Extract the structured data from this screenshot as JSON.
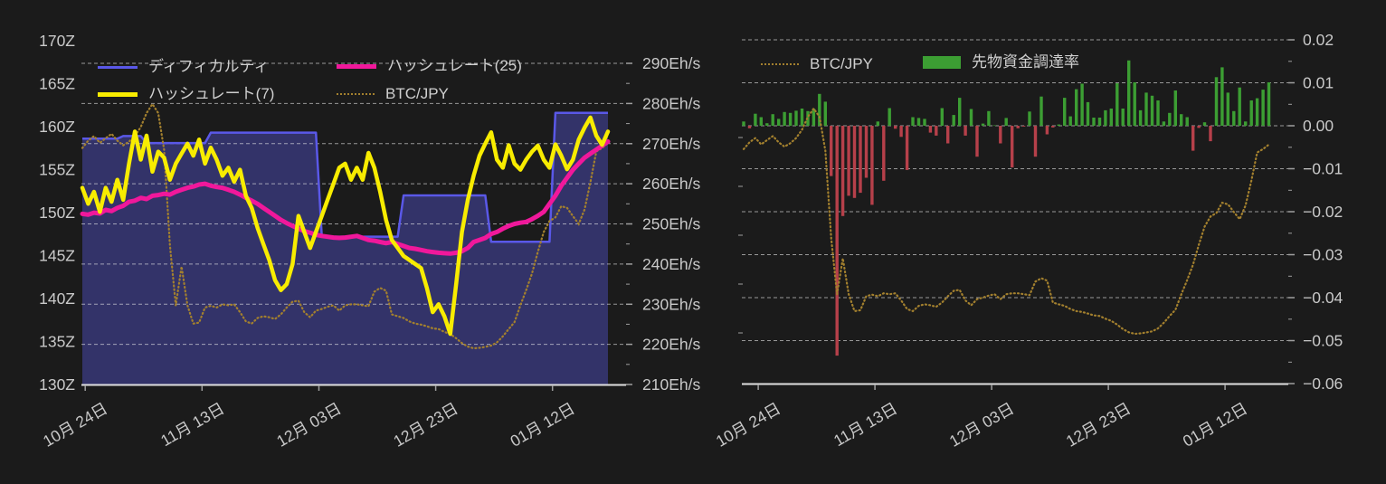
{
  "page": {
    "background": "#1b1b1b"
  },
  "colors": {
    "text": "#c9c9c9",
    "grid": "#ececec",
    "axis_line": "#e0e0e0",
    "tick_mark": "#9f9f9f",
    "difficulty_line": "#5a58e8",
    "difficulty_fill": "rgba(93,91,235,0.38)",
    "hashrate7": "#f8ec00",
    "hashrate25": "#f0189b",
    "btc_jpy": "#a3802e",
    "funding_positive": "#3c9e33",
    "funding_negative": "#b6404a"
  },
  "chart_data": [
    {
      "type": "line",
      "name": "difficulty-hashrate-chart",
      "title": "",
      "grid": true,
      "legend_position": "top-left-inside",
      "x_axis": {
        "tick_labels": [
          "10月 24日",
          "11月 13日",
          "12月 03日",
          "12月 23日",
          "01月 12日"
        ],
        "tick_day_index": [
          0.5,
          20.5,
          40.5,
          60.5,
          80.5
        ]
      },
      "y_left": {
        "unit": "Z",
        "min": 130,
        "max": 170,
        "tick_values": [
          170,
          165,
          160,
          155,
          150,
          145,
          140,
          135,
          130
        ],
        "tick_labels": [
          "170Z",
          "165Z",
          "160Z",
          "155Z",
          "150Z",
          "145Z",
          "140Z",
          "135Z",
          "130Z"
        ]
      },
      "y_right": {
        "unit": "Eh/s",
        "min": 210,
        "max": 290,
        "tick_values": [
          290,
          280,
          270,
          260,
          250,
          240,
          230,
          220,
          210
        ],
        "tick_labels": [
          "290Eh/s",
          "280Eh/s",
          "270Eh/s",
          "260Eh/s",
          "250Eh/s",
          "240Eh/s",
          "230Eh/s",
          "220Eh/s",
          "210Eh/s"
        ]
      },
      "series": [
        {
          "name": "ディフィカルティ",
          "axis": "left",
          "style": "step-area",
          "values": [
            158.6,
            158.6,
            158.6,
            158.6,
            158.6,
            158.6,
            158.6,
            158.9,
            158.9,
            158.9,
            158.9,
            158.1,
            158.1,
            158.1,
            158.1,
            158.1,
            158.1,
            158.1,
            158.1,
            158.1,
            158.1,
            158.1,
            159.3,
            159.3,
            159.3,
            159.3,
            159.3,
            159.3,
            159.3,
            159.3,
            159.3,
            159.3,
            159.3,
            159.3,
            159.3,
            159.3,
            159.3,
            159.3,
            159.3,
            159.3,
            159.3,
            147.2,
            147.2,
            147.2,
            147.2,
            147.2,
            147.2,
            147.2,
            147.2,
            147.2,
            147.2,
            147.2,
            147.2,
            147.2,
            147.2,
            152.0,
            152.0,
            152.0,
            152.0,
            152.0,
            152.0,
            152.0,
            152.0,
            152.0,
            152.0,
            152.0,
            152.0,
            152.0,
            152.0,
            152.0,
            146.6,
            146.6,
            146.6,
            146.6,
            146.6,
            146.6,
            146.6,
            146.6,
            146.6,
            146.6,
            146.6,
            161.6,
            161.6,
            161.6,
            161.6,
            161.6,
            161.6,
            161.6,
            161.6,
            161.6,
            161.6
          ]
        },
        {
          "name": "ハッシュレート(25)",
          "axis": "right",
          "style": "line",
          "values": [
            252.5,
            252.3,
            252.8,
            252.6,
            253.5,
            253.2,
            254,
            254.5,
            255.5,
            255.8,
            256.5,
            256.2,
            257,
            257.2,
            257.5,
            257.3,
            258,
            258.5,
            259,
            259.3,
            259.8,
            260,
            259.5,
            259.2,
            259,
            258.5,
            258,
            257.3,
            256.5,
            255.8,
            255,
            254,
            253,
            252,
            251,
            250.2,
            249.5,
            248.8,
            248.2,
            247.8,
            247.3,
            247,
            246.8,
            246.6,
            246.5,
            246.6,
            246.8,
            247,
            246.5,
            246,
            245.8,
            245.5,
            245.2,
            245.5,
            245,
            244.5,
            244,
            243.8,
            243.5,
            243.2,
            243,
            242.8,
            242.7,
            242.6,
            242.8,
            243.2,
            244,
            245.5,
            246,
            246.5,
            247.5,
            248,
            248.8,
            249.5,
            250,
            250.3,
            250.5,
            251.2,
            252,
            253,
            255,
            257,
            259.5,
            261.5,
            263.5,
            265,
            266.5,
            267.5,
            268.5,
            269.5,
            270.5
          ]
        },
        {
          "name": "ハッシュレート(7)",
          "axis": "right",
          "style": "line",
          "values": [
            259,
            255,
            258,
            253,
            259,
            255.5,
            261,
            256,
            265,
            273,
            266,
            272,
            263,
            268,
            266.5,
            261,
            265,
            267.5,
            270,
            267,
            271,
            265,
            269,
            266,
            262,
            264,
            260.5,
            263.5,
            257,
            254,
            249,
            245,
            241,
            236,
            233.5,
            235,
            240,
            252,
            248,
            244,
            248,
            252,
            256,
            260,
            264,
            265,
            261,
            264,
            261,
            267.7,
            264,
            258,
            251,
            246,
            244,
            242,
            241,
            240,
            239,
            234,
            228,
            230,
            227,
            222.6,
            235,
            248,
            256,
            262,
            267,
            270,
            272.8,
            266,
            264,
            269.6,
            265,
            263.5,
            266,
            268,
            269.5,
            266,
            264,
            269.8,
            267,
            263.6,
            266,
            271,
            274,
            276.5,
            272,
            269.7,
            273
          ]
        },
        {
          "name": "BTC/JPY",
          "axis": "hidden (normalized 0-100, no visible scale)",
          "style": "dotted",
          "values": [
            82,
            85,
            86.9,
            84.1,
            86,
            87.8,
            85,
            83.1,
            84.6,
            86.9,
            90.6,
            96.3,
            100,
            96.3,
            81.3,
            42.3,
            17.6,
            33.5,
            17.6,
            10.1,
            10.5,
            16.7,
            17.4,
            16.7,
            18,
            17.6,
            18,
            14.8,
            11,
            10.1,
            12.4,
            13.1,
            12.7,
            12,
            13.9,
            16.7,
            19.1,
            19.5,
            14.8,
            12.7,
            15.4,
            16.1,
            17,
            17.6,
            15.4,
            17.6,
            18,
            18,
            17.6,
            17.2,
            23.2,
            24.7,
            23.6,
            13.9,
            13.1,
            12.4,
            11,
            10.1,
            9.7,
            9,
            8.2,
            7.9,
            6.7,
            5.8,
            4.1,
            2.1,
            0.7,
            0,
            0.2,
            0.6,
            1.1,
            2.4,
            4.9,
            7.9,
            10.7,
            17.6,
            23.8,
            30.7,
            39.5,
            47.6,
            52.1,
            53.6,
            58.2,
            57.5,
            54.1,
            50.9,
            56.9,
            68,
            80.5,
            82,
            84
          ]
        }
      ]
    },
    {
      "type": "bar",
      "name": "funding-rate-chart",
      "title": "",
      "grid": true,
      "legend_position": "top-left-inside",
      "x_axis": {
        "tick_labels": [
          "10月 24日",
          "11月 13日",
          "12月 03日",
          "12月 23日",
          "01月 12日"
        ],
        "tick_day_index": [
          2.5,
          22.5,
          42.5,
          62.5,
          82.5
        ]
      },
      "y_right": {
        "unit": "",
        "min": -0.06,
        "max": 0.02,
        "tick_values": [
          0.02,
          0.01,
          0,
          -0.01,
          -0.02,
          -0.03,
          -0.04,
          -0.05,
          -0.06
        ],
        "tick_labels": [
          "0.02",
          "0.01",
          "0.00",
          "−0.01",
          "−0.02",
          "−0.03",
          "−0.04",
          "−0.05",
          "−0.06"
        ]
      },
      "series": [
        {
          "name": "BTC/JPY",
          "axis": "hidden (normalized 0-100, no visible scale)",
          "style": "dotted",
          "values": [
            82,
            85,
            86.9,
            84.1,
            86,
            87.8,
            85,
            83.1,
            84.6,
            86.9,
            90.6,
            96.3,
            100,
            96.3,
            81.3,
            42.3,
            17.6,
            33.5,
            17.6,
            10.1,
            10.5,
            16.7,
            17.4,
            16.7,
            18,
            17.6,
            18,
            14.8,
            11,
            10.1,
            12.4,
            13.1,
            12.7,
            12,
            13.9,
            16.7,
            19.1,
            19.5,
            14.8,
            12.7,
            15.4,
            16.1,
            17,
            17.6,
            15.4,
            17.6,
            18,
            18,
            17.6,
            17.2,
            23.2,
            24.7,
            23.6,
            13.9,
            13.1,
            12.4,
            11,
            10.1,
            9.7,
            9,
            8.2,
            7.9,
            6.7,
            5.8,
            4.1,
            2.1,
            0.7,
            0,
            0.2,
            0.6,
            1.1,
            2.4,
            4.9,
            7.9,
            10.7,
            17.6,
            23.8,
            30.7,
            39.5,
            47.6,
            52.1,
            53.6,
            58.2,
            57.5,
            54.1,
            50.9,
            56.9,
            68,
            80.5,
            82,
            84
          ]
        },
        {
          "name": "先物資金調達率",
          "axis": "right",
          "style": "bar",
          "values": [
            0.001,
            -0.0006,
            0.0028,
            0.002,
            0.0006,
            0.0027,
            0.0016,
            0.0032,
            0.003,
            0.0035,
            0.004,
            0.0034,
            0.004,
            0.0074,
            0.0056,
            -0.0117,
            -0.0535,
            -0.021,
            -0.0163,
            -0.0168,
            -0.0156,
            -0.0121,
            -0.0184,
            0.001,
            -0.0128,
            0.0041,
            -0.0007,
            -0.0026,
            -0.0103,
            0.002,
            0.0018,
            0.0016,
            -0.0016,
            -0.0023,
            0.0041,
            -0.0041,
            0.0025,
            0.0065,
            -0.0023,
            0.0039,
            -0.0072,
            0.0005,
            0.0034,
            0.0001,
            -0.0041,
            0.0018,
            -0.0097,
            -0.0006,
            -0.0002,
            0.0033,
            -0.0072,
            0.0068,
            -0.002,
            -0.0004,
            0.0003,
            0.0065,
            0.0022,
            0.0085,
            0.0098,
            0.0055,
            0.0019,
            0.0019,
            0.0036,
            0.004,
            0.0099,
            0.004,
            0.0152,
            0.0101,
            0.0036,
            0.0077,
            0.007,
            0.0059,
            0.001,
            0.003,
            0.0082,
            0.0027,
            0.002,
            -0.0058,
            -0.0005,
            0.0008,
            -0.0036,
            0.0113,
            0.0136,
            0.0077,
            0.0034,
            0.0089,
            0.001,
            0.0059,
            0.0064,
            0.0084,
            0.0101
          ]
        }
      ]
    }
  ]
}
